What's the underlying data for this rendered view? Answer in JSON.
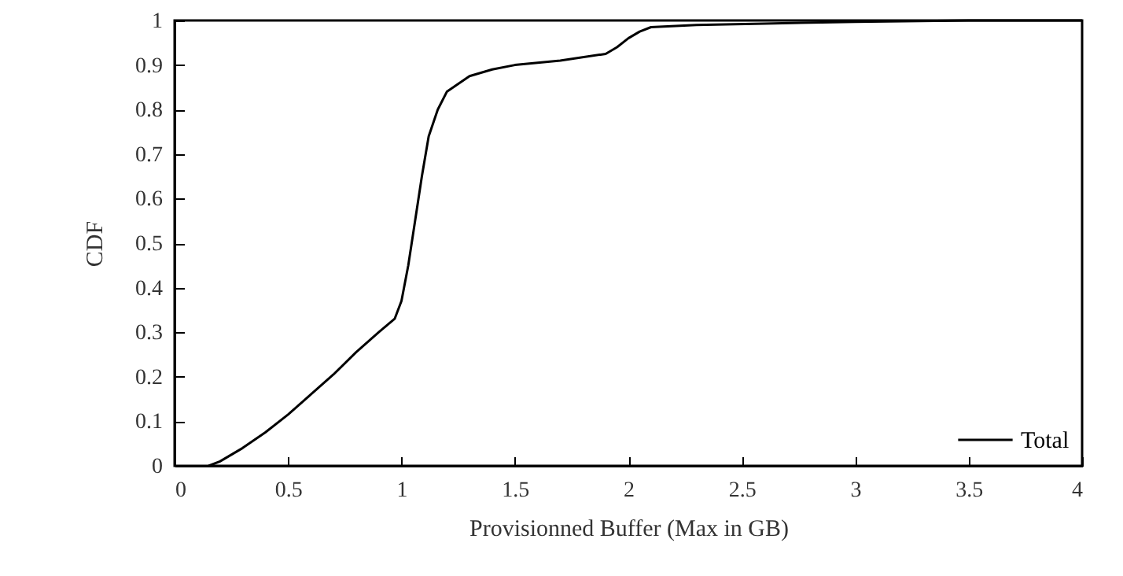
{
  "chart_data": {
    "type": "line",
    "xlabel": "Provisionned Buffer (Max in GB)",
    "ylabel": "CDF",
    "xlim": [
      0,
      4
    ],
    "xticks": [
      0,
      0.5,
      1,
      1.5,
      2,
      2.5,
      3,
      3.5,
      4
    ],
    "ylim": [
      0,
      1
    ],
    "yticks": [
      0,
      0.1,
      0.2,
      0.3,
      0.4,
      0.5,
      0.6,
      0.7,
      0.8,
      0.9,
      1
    ],
    "legend": "bottom right",
    "marker": "none",
    "line_style": "solid",
    "series": [
      {
        "name": "Total",
        "color": "#000000",
        "x": [
          0.15,
          0.2,
          0.3,
          0.4,
          0.5,
          0.6,
          0.7,
          0.8,
          0.9,
          0.97,
          1.0,
          1.03,
          1.06,
          1.09,
          1.12,
          1.16,
          1.2,
          1.3,
          1.4,
          1.5,
          1.7,
          1.9,
          1.95,
          2.0,
          2.05,
          2.1,
          2.3,
          2.6,
          3.0,
          3.5,
          4.0
        ],
        "values": [
          0,
          0.01,
          0.04,
          0.075,
          0.115,
          0.16,
          0.205,
          0.255,
          0.3,
          0.33,
          0.37,
          0.45,
          0.55,
          0.65,
          0.74,
          0.8,
          0.84,
          0.875,
          0.89,
          0.9,
          0.91,
          0.925,
          0.94,
          0.96,
          0.975,
          0.985,
          0.99,
          0.993,
          0.997,
          1,
          1
        ]
      }
    ]
  }
}
